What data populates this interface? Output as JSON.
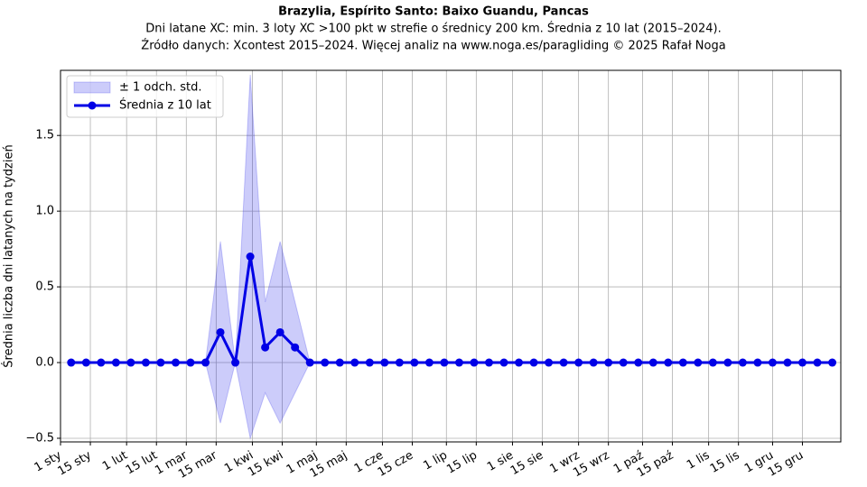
{
  "chart_data": {
    "type": "line",
    "title": "Brazylia, Espírito Santo: Baixo Guandu, Pancas",
    "subtitle": [
      "Dni latane XC: min. 3 loty XC >100 pkt w strefie o średnicy 200 km. Średnia z 10 lat (2015–2024).",
      "Źródło danych: Xcontest 2015–2024. Więcej analiz na www.noga.es/paragliding © 2025 Rafał Noga"
    ],
    "y_label": "Średnia liczba dni latanych na tydzień",
    "x": [
      5,
      12,
      19,
      26,
      33,
      40,
      47,
      54,
      61,
      68,
      75,
      82,
      89,
      96,
      103,
      110,
      117,
      124,
      131,
      138,
      145,
      152,
      159,
      166,
      173,
      180,
      187,
      194,
      201,
      208,
      215,
      222,
      229,
      236,
      243,
      250,
      257,
      264,
      271,
      278,
      285,
      292,
      299,
      306,
      313,
      320,
      327,
      334,
      341,
      348,
      355,
      362
    ],
    "series": [
      {
        "name": "Średnia z 10 lat",
        "color": "#0000e6",
        "values": [
          0,
          0,
          0,
          0,
          0,
          0,
          0,
          0,
          0,
          0,
          0.2,
          0,
          0.7,
          0.1,
          0.2,
          0.1,
          0,
          0,
          0,
          0,
          0,
          0,
          0,
          0,
          0,
          0,
          0,
          0,
          0,
          0,
          0,
          0,
          0,
          0,
          0,
          0,
          0,
          0,
          0,
          0,
          0,
          0,
          0,
          0,
          0,
          0,
          0,
          0,
          0,
          0,
          0,
          0
        ]
      }
    ],
    "band": {
      "name": "± 1 odch. std.",
      "color": "#0000e6",
      "upper": [
        0,
        0,
        0,
        0,
        0,
        0,
        0,
        0,
        0,
        0,
        0.8,
        0,
        1.9,
        0.4,
        0.8,
        0.4,
        0,
        0,
        0,
        0,
        0,
        0,
        0,
        0,
        0,
        0,
        0,
        0,
        0,
        0,
        0,
        0,
        0,
        0,
        0,
        0,
        0,
        0,
        0,
        0,
        0,
        0,
        0,
        0,
        0,
        0,
        0,
        0,
        0,
        0,
        0,
        0
      ],
      "lower": [
        0,
        0,
        0,
        0,
        0,
        0,
        0,
        0,
        0,
        0,
        -0.4,
        0,
        -0.5,
        -0.2,
        -0.4,
        -0.2,
        0,
        0,
        0,
        0,
        0,
        0,
        0,
        0,
        0,
        0,
        0,
        0,
        0,
        0,
        0,
        0,
        0,
        0,
        0,
        0,
        0,
        0,
        0,
        0,
        0,
        0,
        0,
        0,
        0,
        0,
        0,
        0,
        0,
        0,
        0,
        0
      ]
    },
    "xlim": [
      0,
      366
    ],
    "xticks": [
      {
        "value": 0,
        "label": "1 sty"
      },
      {
        "value": 14,
        "label": "15 sty"
      },
      {
        "value": 31,
        "label": "1 lut"
      },
      {
        "value": 45,
        "label": "15 lut"
      },
      {
        "value": 59,
        "label": "1 mar"
      },
      {
        "value": 73,
        "label": "15 mar"
      },
      {
        "value": 90,
        "label": "1 kwi"
      },
      {
        "value": 104,
        "label": "15 kwi"
      },
      {
        "value": 120,
        "label": "1 maj"
      },
      {
        "value": 134,
        "label": "15 maj"
      },
      {
        "value": 151,
        "label": "1 cze"
      },
      {
        "value": 165,
        "label": "15 cze"
      },
      {
        "value": 181,
        "label": "1 lip"
      },
      {
        "value": 195,
        "label": "15 lip"
      },
      {
        "value": 212,
        "label": "1 sie"
      },
      {
        "value": 226,
        "label": "15 sie"
      },
      {
        "value": 243,
        "label": "1 wrz"
      },
      {
        "value": 257,
        "label": "15 wrz"
      },
      {
        "value": 273,
        "label": "1 paź"
      },
      {
        "value": 287,
        "label": "15 paź"
      },
      {
        "value": 304,
        "label": "1 lis"
      },
      {
        "value": 318,
        "label": "15 lis"
      },
      {
        "value": 334,
        "label": "1 gru"
      },
      {
        "value": 348,
        "label": "15 gru"
      }
    ],
    "ylim": [
      -0.524,
      1.93
    ],
    "yticks": [
      {
        "value": -0.5,
        "label": "−0.5"
      },
      {
        "value": 0,
        "label": "0.0"
      },
      0.5,
      {
        "value": 1,
        "label": "1.0"
      },
      1.5
    ],
    "grid": true,
    "legend": "upper left"
  }
}
